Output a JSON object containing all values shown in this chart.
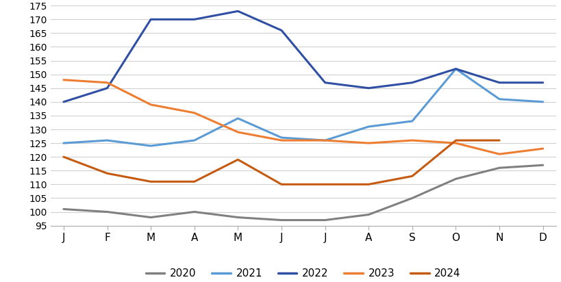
{
  "months": [
    "J",
    "F",
    "M",
    "A",
    "M",
    "J",
    "J",
    "A",
    "S",
    "O",
    "N",
    "D"
  ],
  "series": {
    "2020": [
      101,
      100,
      98,
      100,
      98,
      97,
      97,
      99,
      105,
      112,
      116,
      117
    ],
    "2021": [
      125,
      126,
      124,
      126,
      134,
      127,
      126,
      131,
      133,
      152,
      141,
      140
    ],
    "2022": [
      140,
      145,
      170,
      170,
      173,
      166,
      147,
      145,
      147,
      152,
      147,
      147
    ],
    "2023": [
      148,
      147,
      139,
      136,
      129,
      126,
      126,
      125,
      126,
      125,
      121,
      123
    ],
    "2024": [
      120,
      114,
      111,
      111,
      119,
      110,
      110,
      110,
      113,
      126,
      126,
      null
    ]
  },
  "colors": {
    "2020": "#808080",
    "2021": "#5B9BD5",
    "2022": "#2E4FA3",
    "2023": "#ED7D31",
    "2024": "#C55A11"
  },
  "ylim": [
    95,
    175
  ],
  "yticks": [
    95,
    100,
    105,
    110,
    115,
    120,
    125,
    130,
    135,
    140,
    145,
    150,
    155,
    160,
    165,
    170,
    175
  ],
  "background_color": "#ffffff",
  "grid_color": "#d0d0d0",
  "linewidth": 2.2
}
